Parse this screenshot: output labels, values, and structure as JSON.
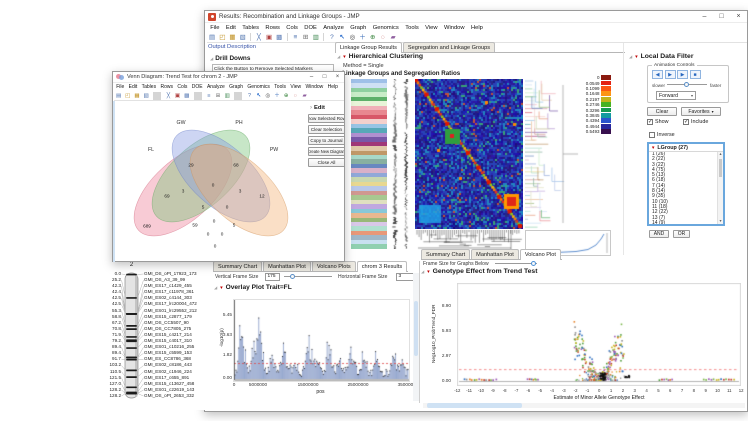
{
  "glyphs": {
    "red_triangle": "▼",
    "disclosure": "◢",
    "chevron": "›",
    "dropdown": "▾",
    "check": "✓",
    "scroll_up": "▲",
    "scroll_down": "▼"
  },
  "window_controls": {
    "minimize": "–",
    "maximize": "□",
    "close": "×"
  },
  "menus": [
    "File",
    "Edit",
    "Tables",
    "Rows",
    "Cols",
    "DOE",
    "Analyze",
    "Graph",
    "Genomics",
    "Tools",
    "View",
    "Window",
    "Help"
  ],
  "toolbar_icons": [
    {
      "name": "new-file-icon",
      "glyph": "▤"
    },
    {
      "name": "open-file-icon",
      "glyph": "◰"
    },
    {
      "name": "save-icon",
      "glyph": "▦"
    },
    {
      "name": "print-icon",
      "glyph": "▧"
    },
    {
      "name": "toolbar-separator",
      "glyph": ""
    },
    {
      "name": "cut-icon",
      "glyph": "╳"
    },
    {
      "name": "copy-icon",
      "glyph": "▣"
    },
    {
      "name": "paste-icon",
      "glyph": "▩"
    },
    {
      "name": "toolbar-separator",
      "glyph": ""
    },
    {
      "name": "journal-icon",
      "glyph": "≡"
    },
    {
      "name": "layout-icon",
      "glyph": "⊞"
    },
    {
      "name": "data-table-icon",
      "glyph": "▥"
    },
    {
      "name": "toolbar-separator",
      "glyph": ""
    },
    {
      "name": "help-icon",
      "glyph": "?"
    },
    {
      "name": "cursor-icon",
      "glyph": "↖"
    },
    {
      "name": "magnifier-icon",
      "glyph": "◎"
    },
    {
      "name": "zoom-in-icon",
      "glyph": "＋"
    },
    {
      "name": "crosshair-icon",
      "glyph": "⊕"
    },
    {
      "name": "lasso-icon",
      "glyph": "◌"
    },
    {
      "name": "brush-icon",
      "glyph": "▰"
    }
  ],
  "main_window": {
    "title": "Results: Recombination and Linkage Groups - JMP",
    "output_link": "Output Description",
    "drill": {
      "title": "Drill Downs",
      "hint": "Click the Button to Remove Selected Markers"
    },
    "tabs": [
      "Linkage Group Results",
      "Segregation and Linkage Groups"
    ],
    "clustering": {
      "title": "Hierarchical Clustering",
      "method": "Method = Single",
      "subtitle": "Linkage Groups and Segregation Ratios",
      "legend": [
        {
          "value": "0",
          "color": "#8b1a10"
        },
        {
          "value": "0.0549",
          "color": "#e42112"
        },
        {
          "value": "0.1099",
          "color": "#fb5512"
        },
        {
          "value": "0.1648",
          "color": "#fd9413"
        },
        {
          "value": "0.2197",
          "color": "#c3b31a"
        },
        {
          "value": "0.2746",
          "color": "#47b222"
        },
        {
          "value": "0.3296",
          "color": "#169a52"
        },
        {
          "value": "0.3845",
          "color": "#149ba0"
        },
        {
          "value": "0.4394",
          "color": "#2b55cd"
        },
        {
          "value": "0.4944",
          "color": "#28289d"
        },
        {
          "value": "0.5493",
          "color": "#38104e"
        }
      ]
    },
    "filter": {
      "title": "Local Data Filter",
      "animation": "Animation Controls",
      "media_buttons": [
        {
          "name": "step-backward-button",
          "glyph": "◀"
        },
        {
          "name": "play-button",
          "glyph": "▶"
        },
        {
          "name": "step-forward-button",
          "glyph": "▶"
        },
        {
          "name": "stop-button",
          "glyph": "■"
        }
      ],
      "slower": "slower",
      "faster": "faster",
      "direction": "Forward",
      "clear": "Clear",
      "favorites": "Favorites",
      "show": "Show",
      "include": "Include",
      "inverse": "Inverse",
      "group_header": "LGroup (27)",
      "items": [
        "1 (26)",
        "2 (22)",
        "3 (22)",
        "4 (75)",
        "5 (13)",
        "6 (18)",
        "7 (14)",
        "8 (14)",
        "9 (35)",
        "10 (10)",
        "11 (18)",
        "12 (22)",
        "13 (7)",
        "14 (9)",
        "15 (8)"
      ],
      "and_label": "AND",
      "or_label": "OR"
    },
    "volcano": {
      "tabs": [
        "Summary Chart",
        "Manhattan Plot",
        "Volcano Plot"
      ],
      "frame_label": "Frame Size for Graphs Below",
      "section": "Genotype Effect from Trend Test",
      "ylabel": "NegLog10_ProbTrend_FDR",
      "xlabel": "Estimate of Minor Allele Genotype Effect",
      "yticks": [
        "8.90",
        "5.93",
        "2.97",
        "0.00"
      ],
      "xticks": [
        "-12",
        "-11",
        "-10",
        "-9",
        "-8",
        "-7",
        "-6",
        "-5",
        "-4",
        "-3",
        "-2",
        "-1",
        "0",
        "1",
        "2",
        "3",
        "4",
        "5",
        "6",
        "7",
        "8",
        "9",
        "10",
        "11",
        "12"
      ]
    }
  },
  "venn_window": {
    "title": "Venn Diagram: Trend Test for chrom 2 - JMP",
    "edit": {
      "title": "Edit",
      "buttons": [
        "Show Selected Rows",
        "Clear Selection",
        "Copy to Journal",
        "Create New Diagram",
        "Close All"
      ]
    },
    "set_labels": [
      {
        "name": "FL"
      },
      {
        "name": "GW"
      },
      {
        "name": "PH"
      },
      {
        "name": "PW"
      }
    ],
    "counts": [
      {
        "region": "GW",
        "value": "29"
      },
      {
        "region": "PH",
        "value": "68"
      },
      {
        "region": "FL&GW",
        "value": "3"
      },
      {
        "region": "GW&PH",
        "value": "0"
      },
      {
        "region": "PH&PW",
        "value": "3"
      },
      {
        "region": "FL",
        "value": "69"
      },
      {
        "region": "PW",
        "value": "12"
      },
      {
        "region": "FL&GW&PH",
        "value": "5"
      },
      {
        "region": "GW&PH&PW",
        "value": "0"
      },
      {
        "region": "FL&PH",
        "value": "59"
      },
      {
        "region": "FL&GW&PH&PW",
        "value": "0"
      },
      {
        "region": "GW&PW",
        "value": "5"
      },
      {
        "region": "FL&PH&PW",
        "value": "0"
      },
      {
        "region": "FL&GW&PW",
        "value": "0"
      },
      {
        "region": "FL&PW",
        "value": "0"
      },
      {
        "region": "outside",
        "value": "689"
      }
    ]
  },
  "map_panel": {
    "chrom": "2",
    "rows": [
      {
        "pos": "0.0",
        "marker": "GMI_DS_oPt_17923_173"
      },
      {
        "pos": "25.2",
        "marker": "GMI_DS_A3_39_99"
      },
      {
        "pos": "42.3",
        "marker": "GMI_ES17_c1429_455"
      },
      {
        "pos": "42.4",
        "marker": "GMI_ES17_c11978_361"
      },
      {
        "pos": "42.5",
        "marker": "GMI_ES02_c4144_303"
      },
      {
        "pos": "42.5",
        "marker": "GMI_ES17_lrc20004_472"
      },
      {
        "pos": "55.3",
        "marker": "GMI_ES01_lrc29552_212"
      },
      {
        "pos": "58.8",
        "marker": "GMI_ES15_c2877_179"
      },
      {
        "pos": "67.2",
        "marker": "GMI_DS_CC5507_90"
      },
      {
        "pos": "70.8",
        "marker": "GMI_DS_CC7805_275"
      },
      {
        "pos": "71.9",
        "marker": "GMI_ES15_c4217_214"
      },
      {
        "pos": "79.2",
        "marker": "GMI_ES15_c4017_310"
      },
      {
        "pos": "89.4",
        "marker": "GMI_ES01_c10216_255"
      },
      {
        "pos": "89.4",
        "marker": "GMI_ES15_c5599_153"
      },
      {
        "pos": "91.7",
        "marker": "GMI_ES_CC8786_368"
      },
      {
        "pos": "103.2",
        "marker": "GMI_ES02_c8186_443"
      },
      {
        "pos": "110.5",
        "marker": "GMI_ES02_c1946_224"
      },
      {
        "pos": "121.5",
        "marker": "GMI_ES17_c655_891"
      },
      {
        "pos": "127.0",
        "marker": "GMI_ES15_c13627_458"
      },
      {
        "pos": "128.2",
        "marker": "GMI_ES01_c22619_143"
      },
      {
        "pos": "128.2",
        "marker": "GMI_DS_oPt_2653_332"
      }
    ]
  },
  "overlay_panel": {
    "tabs": [
      "Summary Chart",
      "Manhattan Plot",
      "Volcano Plots",
      "chrom 3 Results"
    ],
    "v_label": "Vertical Frame Size",
    "v_value": "175",
    "h_label": "Horizontal Frame Size",
    "h_value": "3",
    "section": "Overlay Plot Trait=FL",
    "ylabel": "-log10(p)",
    "xlabel": "pos",
    "yticks": [
      "5.45",
      "3.63",
      "1.82",
      "0.00"
    ],
    "xticks": [
      "0",
      "5000000",
      "15000000",
      "25000000",
      "35000000"
    ]
  }
}
